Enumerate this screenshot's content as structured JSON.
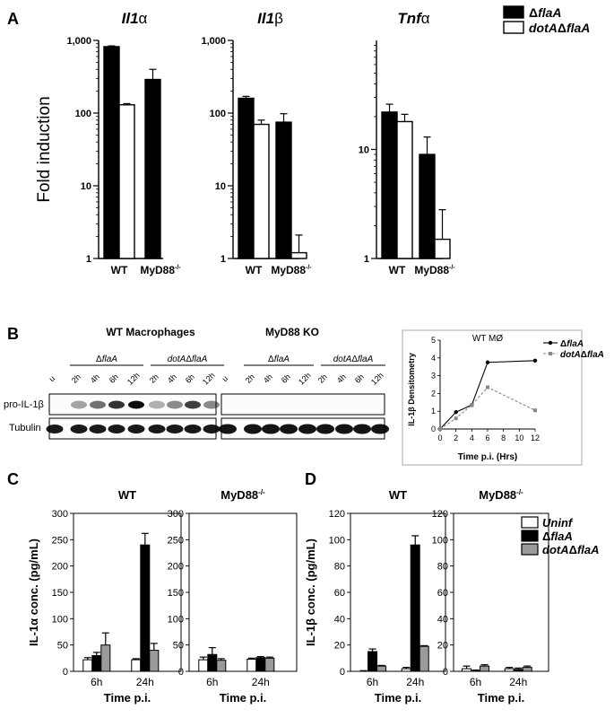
{
  "panels": {
    "A": "A",
    "B": "B",
    "C": "C",
    "D": "D"
  },
  "legends": {
    "A": [
      "ΔflaA",
      "dotAΔflaA"
    ],
    "D": [
      "Uninf",
      "ΔflaA",
      "dotAΔflaA"
    ],
    "B_line": [
      "ΔflaA",
      "dotAΔflaA"
    ]
  },
  "colors": {
    "flaA": "#000000",
    "dotAflaA": "#ffffff",
    "uninf": "#ffffff",
    "grey": "#9a9a9a",
    "line_grey": "#888888"
  },
  "blot": {
    "wt_title": "WT Macrophages",
    "ko_title": "MyD88 KO",
    "group_flaA": "ΔflaA",
    "group_dotA": "dotAΔflaA",
    "row_labels": [
      "pro-IL-1β",
      "Tubulin"
    ],
    "wt_lanes": [
      "u",
      "2h",
      "4h",
      "6h",
      "12h",
      "2h",
      "4h",
      "6h",
      "12h"
    ],
    "ko_lanes": [
      "u",
      "2h",
      "4h",
      "6h",
      "12h",
      "2h",
      "4h",
      "6h",
      "12h"
    ]
  },
  "chart_data": [
    {
      "type": "bar",
      "panel": "A",
      "title_main": "Il1",
      "title_greek": "α",
      "ylabel": "Fold induction",
      "yscale": "log",
      "ylim": [
        1,
        1000
      ],
      "yticks": [
        "1",
        "10",
        "100",
        "1,000"
      ],
      "categories": [
        "WT",
        "MyD88"
      ],
      "category_sup": [
        "",
        "-/-"
      ],
      "series": [
        {
          "name": "ΔflaA",
          "values": [
            820,
            290
          ],
          "errors": [
            840,
            400
          ]
        },
        {
          "name": "dotAΔflaA",
          "values": [
            130,
            null
          ],
          "errors": [
            135,
            null
          ]
        }
      ]
    },
    {
      "type": "bar",
      "panel": "A",
      "title_main": "Il1",
      "title_greek": "β",
      "yscale": "log",
      "ylim": [
        1,
        1000
      ],
      "yticks": [
        "1",
        "10",
        "100",
        "1,000"
      ],
      "categories": [
        "WT",
        "MyD88"
      ],
      "category_sup": [
        "",
        "-/-"
      ],
      "series": [
        {
          "name": "ΔflaA",
          "values": [
            160,
            75
          ],
          "errors": [
            170,
            98
          ]
        },
        {
          "name": "dotAΔflaA",
          "values": [
            70,
            1.2
          ],
          "errors": [
            80,
            2.1
          ]
        }
      ]
    },
    {
      "type": "bar",
      "panel": "A",
      "title_main": "Tnf",
      "title_greek": "α",
      "yscale": "log",
      "ylim": [
        1,
        100
      ],
      "yticks": [
        "1",
        "10"
      ],
      "categories": [
        "WT",
        "MyD88"
      ],
      "category_sup": [
        "",
        "-/-"
      ],
      "series": [
        {
          "name": "ΔflaA",
          "values": [
            22,
            9
          ],
          "errors": [
            26,
            13
          ]
        },
        {
          "name": "dotAΔflaA",
          "values": [
            18,
            1.5
          ],
          "errors": [
            21,
            2.8
          ]
        }
      ]
    },
    {
      "type": "line",
      "panel": "B",
      "title": "WT MØ",
      "xlabel": "Time p.i. (Hrs)",
      "ylabel": "IL-1β Densitometry",
      "xlim": [
        0,
        12
      ],
      "ylim": [
        0,
        5
      ],
      "xticks": [
        0,
        2,
        4,
        6,
        8,
        10,
        12
      ],
      "yticks": [
        0,
        1,
        2,
        3,
        4,
        5
      ],
      "x": [
        0,
        2,
        4,
        6,
        12
      ],
      "series": [
        {
          "name": "ΔflaA",
          "values": [
            0,
            0.95,
            1.35,
            3.75,
            3.85
          ]
        },
        {
          "name": "dotAΔflaA",
          "values": [
            0,
            0.6,
            1.35,
            2.35,
            1.05
          ]
        }
      ]
    },
    {
      "type": "bar",
      "panel": "C",
      "title_main": "WT",
      "title_sup": "",
      "ylabel": "IL-1α conc. (pg/mL)",
      "xlabel": "Time p.i.",
      "ylim": [
        0,
        300
      ],
      "yticks": [
        0,
        50,
        100,
        150,
        200,
        250,
        300
      ],
      "categories": [
        "6h",
        "24h"
      ],
      "series": [
        {
          "name": "Uninf",
          "values": [
            22,
            22
          ],
          "errors": [
            26,
            24
          ]
        },
        {
          "name": "ΔflaA",
          "values": [
            30,
            240
          ],
          "errors": [
            36,
            262
          ]
        },
        {
          "name": "dotAΔflaA",
          "values": [
            50,
            40
          ],
          "errors": [
            73,
            53
          ]
        }
      ]
    },
    {
      "type": "bar",
      "panel": "C",
      "title_main": "MyD88",
      "title_sup": "-/-",
      "xlabel": "Time p.i.",
      "ylim": [
        0,
        300
      ],
      "yticks": [
        0,
        50,
        100,
        150,
        200,
        250,
        300
      ],
      "categories": [
        "6h",
        "24h"
      ],
      "series": [
        {
          "name": "Uninf",
          "values": [
            22,
            23
          ],
          "errors": [
            27,
            25
          ]
        },
        {
          "name": "ΔflaA",
          "values": [
            32,
            26
          ],
          "errors": [
            45,
            28
          ]
        },
        {
          "name": "dotAΔflaA",
          "values": [
            21,
            25
          ],
          "errors": [
            24,
            27
          ]
        }
      ]
    },
    {
      "type": "bar",
      "panel": "D",
      "title_main": "WT",
      "title_sup": "",
      "ylabel": "IL-1β conc. (pg/mL)",
      "xlabel": "Time p.i.",
      "ylim": [
        0,
        120
      ],
      "yticks": [
        0,
        20,
        40,
        60,
        80,
        100,
        120
      ],
      "categories": [
        "6h",
        "24h"
      ],
      "series": [
        {
          "name": "Uninf",
          "values": [
            0,
            2
          ],
          "errors": [
            0.5,
            3
          ]
        },
        {
          "name": "ΔflaA",
          "values": [
            15,
            96
          ],
          "errors": [
            17,
            103
          ]
        },
        {
          "name": "dotAΔflaA",
          "values": [
            4,
            19
          ],
          "errors": [
            4.5,
            19.5
          ]
        }
      ]
    },
    {
      "type": "bar",
      "panel": "D",
      "title_main": "MyD88",
      "title_sup": "-/-",
      "xlabel": "Time p.i.",
      "ylim": [
        0,
        120
      ],
      "yticks": [
        0,
        20,
        40,
        60,
        80,
        100,
        120
      ],
      "categories": [
        "6h",
        "24h"
      ],
      "series": [
        {
          "name": "Uninf",
          "values": [
            2,
            2
          ],
          "errors": [
            4,
            3
          ]
        },
        {
          "name": "ΔflaA",
          "values": [
            0.5,
            1.5
          ],
          "errors": [
            1,
            2.5
          ]
        },
        {
          "name": "dotAΔflaA",
          "values": [
            4,
            3
          ],
          "errors": [
            5,
            4
          ]
        }
      ]
    }
  ]
}
